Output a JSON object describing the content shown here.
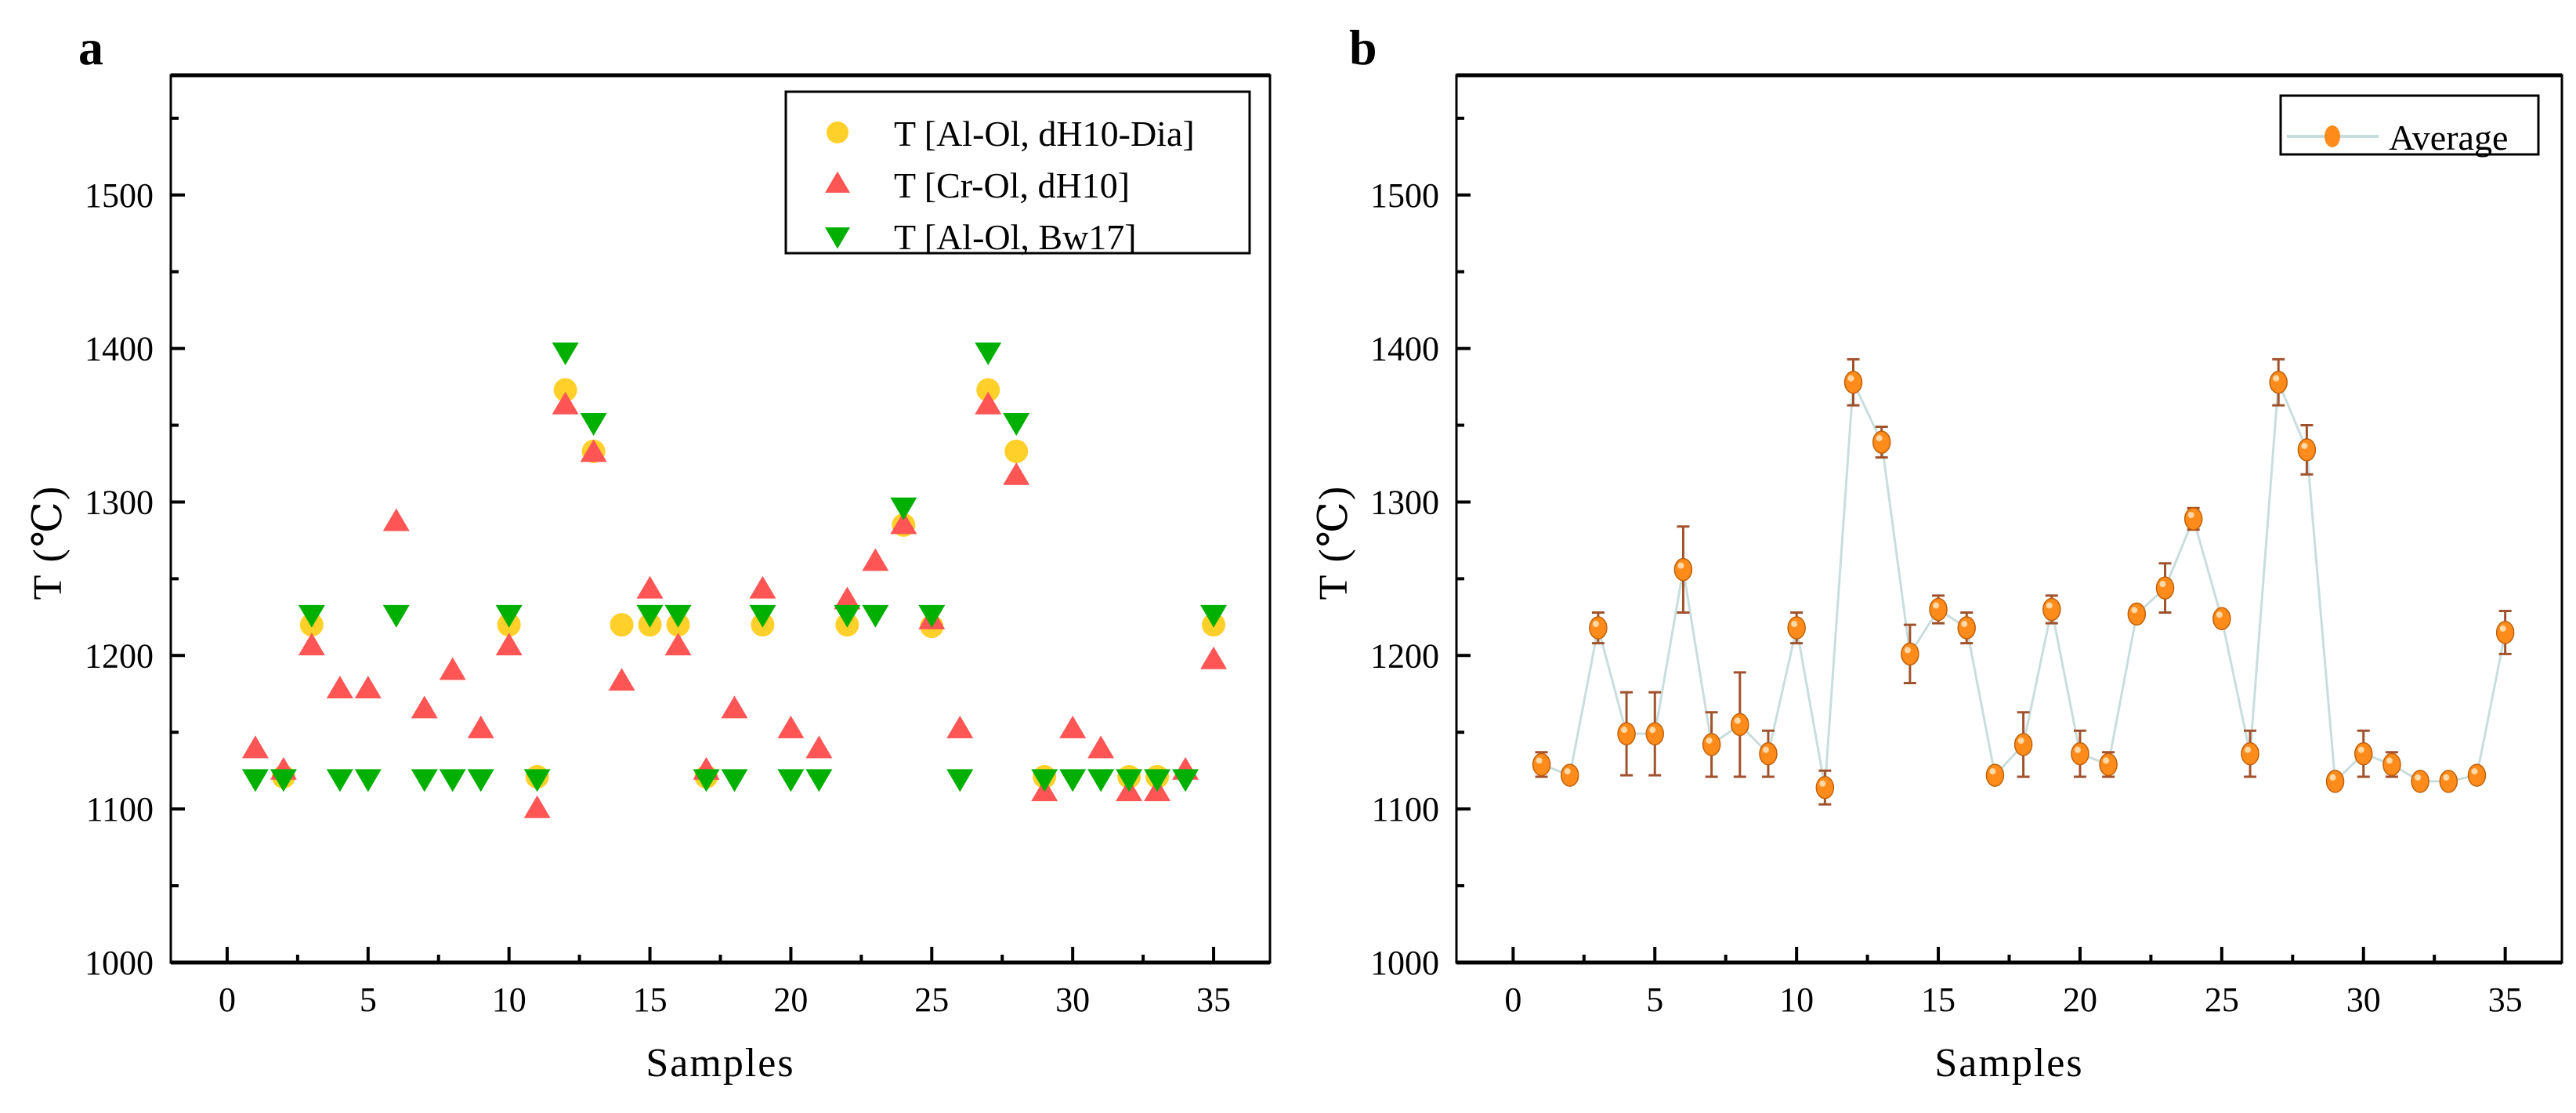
{
  "chart_data": [
    {
      "panel": "a",
      "type": "scatter",
      "xlabel": "Samples",
      "ylabel": "T (℃)",
      "xlim": [
        -2,
        37
      ],
      "ylim": [
        1000,
        1578
      ],
      "xticks": [
        0,
        5,
        10,
        15,
        20,
        25,
        30,
        35
      ],
      "yticks": [
        1000,
        1100,
        1200,
        1300,
        1400,
        1500
      ],
      "grid": false,
      "legend_position": "top-right",
      "series": [
        {
          "name": "T [Al-Ol, dH10-Dia]",
          "marker": "circle",
          "color": "#FFD02A",
          "x": [
            2,
            3,
            10,
            11,
            12,
            13,
            14,
            15,
            16,
            17,
            19,
            22,
            24,
            25,
            27,
            28,
            29,
            32,
            33,
            35
          ],
          "y": [
            1121,
            1220,
            1220,
            1121,
            1373,
            1333,
            1220,
            1220,
            1220,
            1121,
            1220,
            1220,
            1285,
            1219,
            1373,
            1333,
            1121,
            1121,
            1121,
            1220
          ]
        },
        {
          "name": "T [Cr-Ol, dH10]",
          "marker": "triangle-up",
          "color": "#FF5555",
          "x": [
            1,
            2,
            3,
            4,
            5,
            6,
            7,
            8,
            9,
            10,
            11,
            12,
            13,
            14,
            15,
            16,
            17,
            18,
            19,
            20,
            21,
            22,
            23,
            24,
            25,
            26,
            27,
            28,
            29,
            30,
            31,
            32,
            33,
            34,
            35
          ],
          "y": [
            1139,
            1125,
            1206,
            1178,
            1178,
            1287,
            1165,
            1190,
            1152,
            1206,
            1100,
            1363,
            1332,
            1183,
            1243,
            1206,
            1125,
            1165,
            1243,
            1152,
            1139,
            1236,
            1261,
            1285,
            1223,
            1152,
            1363,
            1317,
            1111,
            1152,
            1139,
            1111,
            1111,
            1125,
            1197
          ]
        },
        {
          "name": "T [Al-Ol, Bw17]",
          "marker": "triangle-down",
          "color": "#00B000",
          "x": [
            1,
            2,
            3,
            4,
            5,
            6,
            7,
            8,
            9,
            10,
            11,
            12,
            13,
            15,
            16,
            17,
            18,
            19,
            20,
            21,
            22,
            23,
            24,
            25,
            26,
            27,
            28,
            29,
            30,
            31,
            32,
            33,
            34,
            35
          ],
          "y": [
            1120,
            1120,
            1227,
            1120,
            1120,
            1227,
            1120,
            1120,
            1120,
            1227,
            1120,
            1398,
            1352,
            1227,
            1227,
            1120,
            1120,
            1227,
            1120,
            1120,
            1227,
            1227,
            1297,
            1227,
            1120,
            1398,
            1352,
            1120,
            1120,
            1120,
            1120,
            1120,
            1120,
            1227
          ]
        }
      ]
    },
    {
      "panel": "b",
      "type": "line",
      "xlabel": "Samples",
      "ylabel": "T (℃)",
      "xlim": [
        -2,
        37
      ],
      "ylim": [
        1000,
        1578
      ],
      "xticks": [
        0,
        5,
        10,
        15,
        20,
        25,
        30,
        35
      ],
      "yticks": [
        1000,
        1100,
        1200,
        1300,
        1400,
        1500
      ],
      "grid": false,
      "legend_position": "top-right",
      "series": [
        {
          "name": "Average",
          "marker": "circle",
          "color": "#FF8C1A",
          "line_color": "#C9DDDD",
          "error_color": "#A0522D",
          "x": [
            1,
            2,
            3,
            4,
            5,
            6,
            7,
            8,
            9,
            10,
            11,
            12,
            13,
            14,
            15,
            16,
            17,
            18,
            19,
            20,
            21,
            22,
            23,
            24,
            25,
            26,
            27,
            28,
            29,
            30,
            31,
            32,
            33,
            34,
            35
          ],
          "y": [
            1129,
            1122,
            1218,
            1149,
            1149,
            1256,
            1142,
            1155,
            1136,
            1218,
            1114,
            1378,
            1339,
            1201,
            1230,
            1218,
            1122,
            1142,
            1230,
            1136,
            1129,
            1227,
            1244,
            1289,
            1224,
            1136,
            1378,
            1334,
            1118,
            1136,
            1129,
            1118,
            1118,
            1122,
            1215
          ],
          "error": [
            8,
            2,
            10,
            27,
            27,
            28,
            21,
            34,
            15,
            10,
            11,
            15,
            10,
            19,
            9,
            10,
            2,
            21,
            9,
            15,
            8,
            3,
            16,
            7,
            2,
            15,
            15,
            16,
            3,
            15,
            8,
            3,
            3,
            2,
            14
          ]
        }
      ]
    }
  ]
}
